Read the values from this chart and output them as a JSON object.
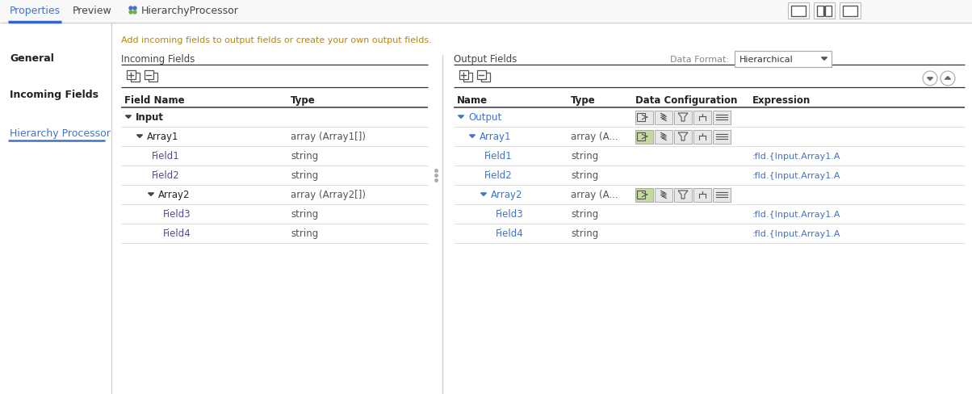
{
  "bg_color": "#ffffff",
  "tab_properties": "Properties",
  "tab_preview": "Preview",
  "tab_hierarchy": "HierarchyProcessor",
  "nav_items": [
    "General",
    "Incoming Fields",
    "Hierarchy Processor"
  ],
  "active_nav": "Hierarchy Processor",
  "hint_text": "Add incoming fields to output fields or create your own output fields.",
  "incoming_label": "Incoming Fields",
  "output_label": "Output Fields",
  "data_format_label": "Data Format:",
  "data_format_value": "Hierarchical",
  "incoming_col1": "Field Name",
  "incoming_col2": "Type",
  "incoming_rows": [
    {
      "level": 0,
      "name": "Input",
      "type": "",
      "bold": true,
      "color": "#222222",
      "arrow": true
    },
    {
      "level": 1,
      "name": "Array1",
      "type": "array (Array1[])",
      "bold": false,
      "color": "#222222",
      "arrow": true
    },
    {
      "level": 2,
      "name": "Field1",
      "type": "string",
      "bold": false,
      "color": "#5a4a8a",
      "arrow": false
    },
    {
      "level": 2,
      "name": "Field2",
      "type": "string",
      "bold": false,
      "color": "#5a4a8a",
      "arrow": false
    },
    {
      "level": 2,
      "name": "Array2",
      "type": "array (Array2[])",
      "bold": false,
      "color": "#222222",
      "arrow": true
    },
    {
      "level": 3,
      "name": "Field3",
      "type": "string",
      "bold": false,
      "color": "#5a4a8a",
      "arrow": false
    },
    {
      "level": 3,
      "name": "Field4",
      "type": "string",
      "bold": false,
      "color": "#5a4a8a",
      "arrow": false
    }
  ],
  "output_col1": "Name",
  "output_col2": "Type",
  "output_col3": "Data Configuration",
  "output_col4": "Expression",
  "output_rows": [
    {
      "level": 0,
      "name": "Output",
      "type": "",
      "expr": "",
      "color": "#4472c4",
      "arrow": true,
      "has_icons": true,
      "icon_green": false
    },
    {
      "level": 1,
      "name": "Array1",
      "type": "array (A...",
      "expr": "",
      "color": "#4472c4",
      "arrow": true,
      "has_icons": true,
      "icon_green": true
    },
    {
      "level": 2,
      "name": "Field1",
      "type": "string",
      "expr": ":fld.{Input.Array1.A",
      "color": "#4472c4",
      "arrow": false,
      "has_icons": false,
      "icon_green": false
    },
    {
      "level": 2,
      "name": "Field2",
      "type": "string",
      "expr": ":fld.{Input.Array1.A",
      "color": "#4472c4",
      "arrow": false,
      "has_icons": false,
      "icon_green": false
    },
    {
      "level": 2,
      "name": "Array2",
      "type": "array (A...",
      "expr": "",
      "color": "#4472c4",
      "arrow": true,
      "has_icons": true,
      "icon_green": true
    },
    {
      "level": 3,
      "name": "Field3",
      "type": "string",
      "expr": ":fld.{Input.Array1.A",
      "color": "#4472c4",
      "arrow": false,
      "has_icons": false,
      "icon_green": false
    },
    {
      "level": 3,
      "name": "Field4",
      "type": "string",
      "expr": ":fld.{Input.Array1.A",
      "color": "#4472c4",
      "arrow": false,
      "has_icons": false,
      "icon_green": false
    }
  ],
  "colors": {
    "active_tab_text": "#4472c4",
    "inactive_tab_text": "#444444",
    "active_nav_text": "#4472c4",
    "inactive_nav_text": "#222222",
    "row_line": "#dddddd",
    "section_line": "#222222",
    "hint_text": "#b8860b",
    "icon_green_bg": "#c6d9a0",
    "icon_gray_bg": "#e8e8e8",
    "active_tab_underline": "#3366cc",
    "nav_active_underline": "#4472c4",
    "dropdown_border": "#aaaaaa",
    "sidebar_div": "#cccccc"
  }
}
